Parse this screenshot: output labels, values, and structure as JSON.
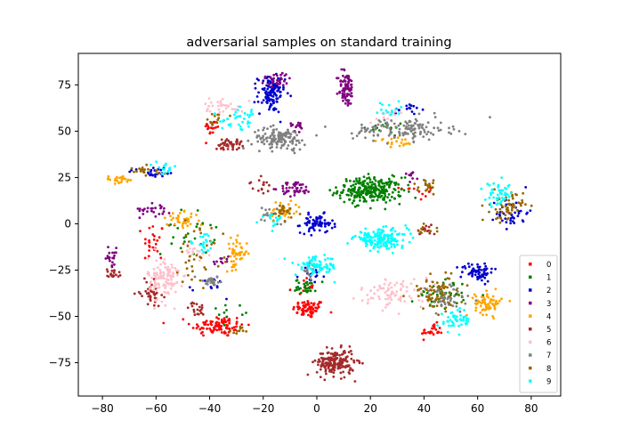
{
  "chart_data": {
    "type": "scatter",
    "title": "adversarial samples on standard training",
    "xlabel": "",
    "ylabel": "",
    "xlim": [
      -89,
      91
    ],
    "ylim": [
      -93,
      92
    ],
    "xticks": [
      -80,
      -60,
      -40,
      -20,
      0,
      20,
      40,
      60,
      80
    ],
    "yticks": [
      -75,
      -50,
      -25,
      0,
      25,
      50,
      75
    ],
    "grid": false,
    "legend_position": "lower-right",
    "series": [
      {
        "name": "0",
        "color": "#ff0000",
        "clusters": [
          {
            "cx": -3,
            "cy": -46,
            "sx": 3,
            "sy": 2.5,
            "n": 70
          },
          {
            "cx": -37,
            "cy": -55,
            "sx": 5,
            "sy": 3,
            "n": 90
          },
          {
            "cx": -39,
            "cy": 52,
            "sx": 1.5,
            "sy": 2,
            "n": 20
          },
          {
            "cx": -61,
            "cy": -10,
            "sx": 2,
            "sy": 6,
            "n": 25
          },
          {
            "cx": 43,
            "cy": -58,
            "sx": 2,
            "sy": 2,
            "n": 25
          },
          {
            "cx": -5,
            "cy": -34,
            "sx": 2,
            "sy": 2,
            "n": 12
          },
          {
            "cx": 37,
            "cy": 17,
            "sx": 3,
            "sy": 2,
            "n": 12
          }
        ]
      },
      {
        "name": "1",
        "color": "#008000",
        "clusters": [
          {
            "cx": 20,
            "cy": 18,
            "sx": 6,
            "sy": 3.5,
            "n": 260
          },
          {
            "cx": -4,
            "cy": -34,
            "sx": 2,
            "sy": 2,
            "n": 30
          },
          {
            "cx": -48,
            "cy": -5,
            "sx": 5,
            "sy": 6,
            "n": 25
          },
          {
            "cx": 47,
            "cy": -38,
            "sx": 5,
            "sy": 4,
            "n": 40
          },
          {
            "cx": 28,
            "cy": 52,
            "sx": 5,
            "sy": 2,
            "n": 15
          },
          {
            "cx": -33,
            "cy": -47,
            "sx": 3,
            "sy": 2,
            "n": 10
          }
        ]
      },
      {
        "name": "2",
        "color": "#0000cd",
        "clusters": [
          {
            "cx": -17,
            "cy": 70,
            "sx": 2.5,
            "sy": 5,
            "n": 110
          },
          {
            "cx": 0,
            "cy": 0,
            "sx": 3,
            "sy": 2.5,
            "n": 70
          },
          {
            "cx": 60,
            "cy": -26,
            "sx": 3,
            "sy": 2.5,
            "n": 70
          },
          {
            "cx": 73,
            "cy": 6,
            "sx": 3,
            "sy": 4,
            "n": 40
          },
          {
            "cx": -61,
            "cy": 28,
            "sx": 5,
            "sy": 1.5,
            "n": 25
          },
          {
            "cx": 34,
            "cy": 62,
            "sx": 2.5,
            "sy": 1.5,
            "n": 15
          },
          {
            "cx": -2,
            "cy": -28,
            "sx": 2,
            "sy": 3,
            "n": 15
          },
          {
            "cx": -38,
            "cy": -35,
            "sx": 3,
            "sy": 3,
            "n": 10
          }
        ]
      },
      {
        "name": "3",
        "color": "#800080",
        "clusters": [
          {
            "cx": 11,
            "cy": 73,
            "sx": 1.5,
            "sy": 5,
            "n": 80
          },
          {
            "cx": -8,
            "cy": 19,
            "sx": 3,
            "sy": 2,
            "n": 50
          },
          {
            "cx": -15,
            "cy": 78,
            "sx": 3,
            "sy": 2,
            "n": 30
          },
          {
            "cx": -60,
            "cy": 8,
            "sx": 3,
            "sy": 2,
            "n": 25
          },
          {
            "cx": -77,
            "cy": -18,
            "sx": 1.5,
            "sy": 2.5,
            "n": 20
          },
          {
            "cx": -7,
            "cy": 53,
            "sx": 1.5,
            "sy": 1.5,
            "n": 15
          },
          {
            "cx": 35,
            "cy": 26,
            "sx": 2,
            "sy": 1.5,
            "n": 10
          },
          {
            "cx": -36,
            "cy": -20,
            "sx": 1.5,
            "sy": 1.5,
            "n": 10
          }
        ]
      },
      {
        "name": "4",
        "color": "#ffa500",
        "clusters": [
          {
            "cx": 64,
            "cy": -43,
            "sx": 2.5,
            "sy": 3,
            "n": 70
          },
          {
            "cx": -30,
            "cy": -16,
            "sx": 2,
            "sy": 4,
            "n": 50
          },
          {
            "cx": -50,
            "cy": 2,
            "sx": 3,
            "sy": 2,
            "n": 40
          },
          {
            "cx": -74,
            "cy": 24,
            "sx": 3,
            "sy": 1,
            "n": 25
          },
          {
            "cx": -12,
            "cy": 7,
            "sx": 3,
            "sy": 3,
            "n": 30
          },
          {
            "cx": 30,
            "cy": 45,
            "sx": 4,
            "sy": 2,
            "n": 20
          }
        ]
      },
      {
        "name": "5",
        "color": "#a52a2a",
        "clusters": [
          {
            "cx": 7,
            "cy": -75,
            "sx": 3.5,
            "sy": 3.5,
            "n": 190
          },
          {
            "cx": -33,
            "cy": 43,
            "sx": 2.5,
            "sy": 1.5,
            "n": 45
          },
          {
            "cx": -62,
            "cy": -37,
            "sx": 2,
            "sy": 3,
            "n": 40
          },
          {
            "cx": -76,
            "cy": -27,
            "sx": 1.5,
            "sy": 1.5,
            "n": 20
          },
          {
            "cx": -45,
            "cy": -46,
            "sx": 1.5,
            "sy": 2,
            "n": 20
          },
          {
            "cx": -21,
            "cy": 20,
            "sx": 2,
            "sy": 2,
            "n": 15
          },
          {
            "cx": 41,
            "cy": -3,
            "sx": 2,
            "sy": 1.5,
            "n": 15
          }
        ]
      },
      {
        "name": "6",
        "color": "#ffc0cb",
        "clusters": [
          {
            "cx": -57,
            "cy": -30,
            "sx": 3,
            "sy": 6,
            "n": 120
          },
          {
            "cx": 30,
            "cy": -37,
            "sx": 7,
            "sy": 4,
            "n": 90
          },
          {
            "cx": -35,
            "cy": 64,
            "sx": 4,
            "sy": 2,
            "n": 30
          },
          {
            "cx": -46,
            "cy": -15,
            "sx": 3,
            "sy": 3,
            "n": 20
          },
          {
            "cx": 27,
            "cy": 58,
            "sx": 4,
            "sy": 2,
            "n": 15
          }
        ]
      },
      {
        "name": "7",
        "color": "#808080",
        "clusters": [
          {
            "cx": -14,
            "cy": 46,
            "sx": 5,
            "sy": 3,
            "n": 130
          },
          {
            "cx": 32,
            "cy": 51,
            "sx": 9,
            "sy": 3,
            "n": 130
          },
          {
            "cx": 48,
            "cy": -41,
            "sx": 5,
            "sy": 4,
            "n": 50
          },
          {
            "cx": -39,
            "cy": -31,
            "sx": 3,
            "sy": 1.5,
            "n": 25
          },
          {
            "cx": -17,
            "cy": 5,
            "sx": 2,
            "sy": 3,
            "n": 15
          },
          {
            "cx": -3,
            "cy": -25,
            "sx": 2,
            "sy": 2,
            "n": 12
          }
        ]
      },
      {
        "name": "8",
        "color": "#996600",
        "clusters": [
          {
            "cx": 71,
            "cy": 9,
            "sx": 3,
            "sy": 4,
            "n": 60
          },
          {
            "cx": 45,
            "cy": -37,
            "sx": 5,
            "sy": 5,
            "n": 70
          },
          {
            "cx": -45,
            "cy": -15,
            "sx": 5,
            "sy": 8,
            "n": 40
          },
          {
            "cx": 42,
            "cy": 20,
            "sx": 2,
            "sy": 2,
            "n": 20
          },
          {
            "cx": -13,
            "cy": 7,
            "sx": 3,
            "sy": 3,
            "n": 25
          },
          {
            "cx": -65,
            "cy": 28,
            "sx": 5,
            "sy": 1.5,
            "n": 20
          },
          {
            "cx": -38,
            "cy": 56,
            "sx": 3,
            "sy": 2,
            "n": 15
          },
          {
            "cx": 40,
            "cy": -3,
            "sx": 2,
            "sy": 1.5,
            "n": 10
          },
          {
            "cx": -28,
            "cy": -58,
            "sx": 2,
            "sy": 1.5,
            "n": 10
          }
        ]
      },
      {
        "name": "9",
        "color": "#00ffff",
        "clusters": [
          {
            "cx": 24,
            "cy": -8,
            "sx": 5,
            "sy": 2.5,
            "n": 170
          },
          {
            "cx": 0,
            "cy": -23,
            "sx": 4,
            "sy": 2.5,
            "n": 80
          },
          {
            "cx": 68,
            "cy": 16,
            "sx": 2.5,
            "sy": 3,
            "n": 45
          },
          {
            "cx": 52,
            "cy": -52,
            "sx": 3,
            "sy": 3,
            "n": 45
          },
          {
            "cx": -28,
            "cy": 56,
            "sx": 4,
            "sy": 3,
            "n": 35
          },
          {
            "cx": -56,
            "cy": 30,
            "sx": 2,
            "sy": 1.5,
            "n": 15
          },
          {
            "cx": -17,
            "cy": 3,
            "sx": 2,
            "sy": 2,
            "n": 15
          },
          {
            "cx": 27,
            "cy": 61,
            "sx": 4,
            "sy": 2,
            "n": 15
          },
          {
            "cx": -42,
            "cy": -10,
            "sx": 2,
            "sy": 3,
            "n": 20
          }
        ]
      }
    ]
  }
}
